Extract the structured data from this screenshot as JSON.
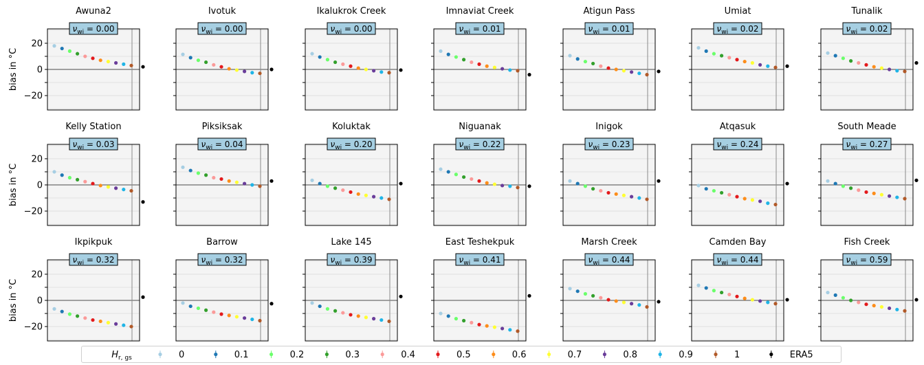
{
  "chart_data": {
    "type": "scatter",
    "ylabel": "bias in °C",
    "ylim": [
      -31,
      31
    ],
    "yticks": [
      -20,
      0,
      20
    ],
    "grid": true,
    "legend_title": "H_r,gs",
    "legend_placement": "bottom",
    "series_labels": [
      "0",
      "0.1",
      "0.2",
      "0.3",
      "0.4",
      "0.5",
      "0.6",
      "0.7",
      "0.8",
      "0.9",
      "1",
      "ERA5"
    ],
    "series_colors": [
      "#a6cee3",
      "#1f78b4",
      "#6bff6b",
      "#33a02c",
      "#fb9a99",
      "#e31a1c",
      "#fd8d1a",
      "#ffff33",
      "#6a3d9a",
      "#1fb4e6",
      "#b15928",
      "#000000"
    ],
    "annotation_prefix": "ν",
    "annotation_subscript": "wi",
    "panels": [
      {
        "title": "Awuna2",
        "nu_wi": "0.00",
        "bias": [
          18,
          16,
          14,
          12,
          10,
          8.5,
          7,
          6,
          5,
          4,
          3
        ],
        "era5": 2
      },
      {
        "title": "Ivotuk",
        "nu_wi": "0.00",
        "bias": [
          11.5,
          9,
          7,
          5.5,
          3.5,
          2,
          0.5,
          -0.5,
          -1.5,
          -2.5,
          -3
        ],
        "era5": 0
      },
      {
        "title": "Ikalukrok Creek",
        "nu_wi": "0.00",
        "bias": [
          12,
          9.5,
          7.5,
          5.5,
          4,
          2.5,
          1,
          0,
          -1,
          -2,
          -2.5
        ],
        "era5": -0.5
      },
      {
        "title": "Imnaviat Creek",
        "nu_wi": "0.01",
        "bias": [
          14,
          11.5,
          9.5,
          7.5,
          5.5,
          4,
          2.5,
          1.5,
          0.5,
          -0.5,
          -1
        ],
        "era5": -4
      },
      {
        "title": "Atigun Pass",
        "nu_wi": "0.01",
        "bias": [
          10.5,
          8,
          6,
          4.5,
          2.5,
          1,
          0,
          -1,
          -2,
          -3,
          -4
        ],
        "era5": -1.5
      },
      {
        "title": "Umiat",
        "nu_wi": "0.02",
        "bias": [
          16.5,
          14,
          12,
          10.5,
          9,
          7.5,
          6,
          5,
          3.5,
          2.5,
          1.5
        ],
        "era5": 2.5
      },
      {
        "title": "Tunalik",
        "nu_wi": "0.02",
        "bias": [
          12.5,
          10.5,
          8.5,
          6.5,
          5,
          3.5,
          2,
          1,
          0,
          -1,
          -1.5
        ],
        "era5": 5
      },
      {
        "title": "Kelly Station",
        "nu_wi": "0.03",
        "bias": [
          10,
          7.5,
          5.5,
          4,
          2.5,
          1,
          -0.5,
          -1.5,
          -2.5,
          -3.5,
          -4.5
        ],
        "era5": -13
      },
      {
        "title": "Piksiksak",
        "nu_wi": "0.04",
        "bias": [
          13.5,
          11,
          9,
          7.5,
          5.5,
          4.5,
          3,
          2,
          1,
          0,
          -1
        ],
        "era5": 3
      },
      {
        "title": "Koluktak",
        "nu_wi": "0.20",
        "bias": [
          3.5,
          1,
          -1,
          -2.5,
          -4,
          -5.5,
          -7,
          -8,
          -9,
          -10,
          -11
        ],
        "era5": 1
      },
      {
        "title": "Niguanak",
        "nu_wi": "0.22",
        "bias": [
          12,
          10,
          8,
          6,
          4.5,
          3,
          1.5,
          0.5,
          -0.5,
          -1,
          -2
        ],
        "era5": -1
      },
      {
        "title": "Inigok",
        "nu_wi": "0.23",
        "bias": [
          3,
          1,
          -1,
          -3,
          -4.5,
          -6,
          -7,
          -8,
          -9,
          -10,
          -11
        ],
        "era5": 3
      },
      {
        "title": "Atqasuk",
        "nu_wi": "0.24",
        "bias": [
          -0.5,
          -3,
          -4.5,
          -6,
          -7.5,
          -9,
          -10.5,
          -11.5,
          -12.5,
          -14,
          -15
        ],
        "era5": 1
      },
      {
        "title": "South Meade",
        "nu_wi": "0.27",
        "bias": [
          3,
          1,
          -1,
          -2.5,
          -4,
          -5.5,
          -6.5,
          -7.5,
          -8.5,
          -9.5,
          -10.5
        ],
        "era5": 3.5
      },
      {
        "title": "Ikpikpuk",
        "nu_wi": "0.32",
        "bias": [
          -6.5,
          -8.5,
          -10.5,
          -12,
          -13.5,
          -15,
          -16,
          -17,
          -18,
          -19,
          -20
        ],
        "era5": 2.5
      },
      {
        "title": "Barrow",
        "nu_wi": "0.32",
        "bias": [
          -2,
          -4.5,
          -6,
          -7.5,
          -9,
          -10.5,
          -11.5,
          -12.5,
          -13.5,
          -14.5,
          -15.5
        ],
        "era5": -2.5
      },
      {
        "title": "Lake 145",
        "nu_wi": "0.39",
        "bias": [
          -2,
          -4.5,
          -6.5,
          -8,
          -9.5,
          -11,
          -12,
          -13,
          -14,
          -15,
          -16
        ],
        "era5": 3
      },
      {
        "title": "East Teshekpuk",
        "nu_wi": "0.41",
        "bias": [
          -10,
          -12,
          -14,
          -15.5,
          -17,
          -18.5,
          -19.5,
          -20.5,
          -21.5,
          -22.5,
          -23.5
        ],
        "era5": 3.5
      },
      {
        "title": "Marsh Creek",
        "nu_wi": "0.44",
        "bias": [
          9,
          7,
          5,
          3.5,
          2,
          0.5,
          -0.5,
          -1.5,
          -2.5,
          -3.5,
          -5
        ],
        "era5": -1
      },
      {
        "title": "Camden Bay",
        "nu_wi": "0.44",
        "bias": [
          11.5,
          9.5,
          7.5,
          6,
          4.5,
          3,
          1.5,
          0.5,
          -0.5,
          -1.5,
          -2.5
        ],
        "era5": 0.5
      },
      {
        "title": "Fish Creek",
        "nu_wi": "0.59",
        "bias": [
          6,
          4,
          2,
          0,
          -1.5,
          -3,
          -4,
          -5,
          -6,
          -7,
          -8
        ],
        "era5": 0.5
      }
    ]
  }
}
